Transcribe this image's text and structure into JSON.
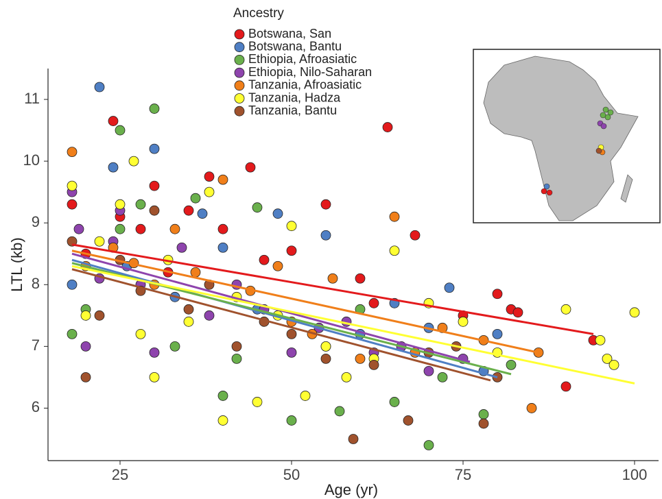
{
  "chart_data": {
    "type": "scatter",
    "xlabel": "Age (yr)",
    "ylabel": "LTL (kb)",
    "legend_title": "Ancestry",
    "xlim": [
      14.5,
      103.5
    ],
    "ylim": [
      5.15,
      11.5
    ],
    "xticks": [
      25,
      50,
      75,
      100
    ],
    "yticks": [
      6,
      7,
      8,
      9,
      10,
      11
    ],
    "series": [
      {
        "name": "Botswana, San",
        "color": "#e31a1c",
        "x": [
          18,
          20,
          24,
          25,
          28,
          30,
          32,
          35,
          38,
          40,
          44,
          46,
          50,
          55,
          60,
          62,
          64,
          68,
          75,
          80,
          82,
          83,
          90,
          94
        ],
        "y": [
          9.3,
          8.5,
          10.65,
          9.1,
          8.9,
          9.6,
          8.2,
          9.2,
          9.75,
          8.9,
          9.9,
          8.4,
          8.55,
          9.3,
          8.1,
          7.7,
          10.55,
          8.8,
          7.5,
          7.85,
          7.6,
          7.55,
          6.35,
          7.1
        ],
        "fit": {
          "x": [
            18,
            94
          ],
          "y": [
            8.65,
            7.2
          ]
        }
      },
      {
        "name": "Botswana, Bantu",
        "color": "#4f7fc4",
        "x": [
          18,
          22,
          24,
          26,
          30,
          33,
          37,
          40,
          45,
          48,
          55,
          60,
          65,
          70,
          73,
          78,
          80
        ],
        "y": [
          8.0,
          11.2,
          9.9,
          8.3,
          10.2,
          7.8,
          9.15,
          8.6,
          7.6,
          9.15,
          8.8,
          7.2,
          7.7,
          7.3,
          7.95,
          6.6,
          7.2
        ],
        "fit": {
          "x": [
            18,
            80
          ],
          "y": [
            8.4,
            6.5
          ]
        }
      },
      {
        "name": "Ethiopia, Afroasiatic",
        "color": "#6ab04c",
        "x": [
          18,
          20,
          25,
          25,
          28,
          30,
          33,
          36,
          40,
          42,
          45,
          50,
          55,
          57,
          60,
          65,
          70,
          72,
          78,
          82
        ],
        "y": [
          7.2,
          7.6,
          10.5,
          8.9,
          9.3,
          10.85,
          7.0,
          9.4,
          6.2,
          6.8,
          9.25,
          5.8,
          7.0,
          5.95,
          7.6,
          6.1,
          5.4,
          6.5,
          5.9,
          6.7
        ],
        "fit": {
          "x": [
            18,
            82
          ],
          "y": [
            8.35,
            6.55
          ]
        }
      },
      {
        "name": "Ethiopia, Nilo-Saharan",
        "color": "#8e44ad",
        "x": [
          18,
          19,
          20,
          22,
          24,
          25,
          28,
          30,
          34,
          38,
          42,
          46,
          50,
          54,
          58,
          62,
          66,
          70,
          75
        ],
        "y": [
          9.5,
          8.9,
          7.0,
          8.1,
          8.7,
          9.2,
          8.0,
          6.9,
          8.6,
          7.5,
          8.0,
          7.6,
          6.9,
          7.3,
          7.4,
          6.9,
          7.0,
          6.6,
          6.8
        ],
        "fit": {
          "x": [
            18,
            76
          ],
          "y": [
            8.5,
            6.75
          ]
        }
      },
      {
        "name": "Tanzania, Afroasiatic",
        "color": "#f07f1a",
        "x": [
          18,
          20,
          24,
          27,
          30,
          33,
          36,
          40,
          44,
          48,
          50,
          53,
          56,
          60,
          65,
          68,
          72,
          78,
          85,
          86
        ],
        "y": [
          10.15,
          8.3,
          8.6,
          8.35,
          8.0,
          8.9,
          8.2,
          9.7,
          7.9,
          8.3,
          7.4,
          7.2,
          8.1,
          6.8,
          9.1,
          6.9,
          7.3,
          7.1,
          6.0,
          6.9
        ],
        "fit": {
          "x": [
            18,
            86
          ],
          "y": [
            8.55,
            6.9
          ]
        }
      },
      {
        "name": "Tanzania, Hadza",
        "color": "#ffff33",
        "x": [
          18,
          20,
          22,
          25,
          27,
          28,
          30,
          32,
          35,
          38,
          40,
          42,
          45,
          48,
          50,
          52,
          55,
          58,
          62,
          65,
          70,
          75,
          80,
          90,
          95,
          96,
          97,
          100
        ],
        "y": [
          9.6,
          7.5,
          8.7,
          9.3,
          10.0,
          7.2,
          6.5,
          8.4,
          7.4,
          9.5,
          5.8,
          7.8,
          6.1,
          7.5,
          8.95,
          6.2,
          7.0,
          6.5,
          6.8,
          8.55,
          7.7,
          7.4,
          6.9,
          7.6,
          7.1,
          6.8,
          6.7,
          7.55
        ],
        "fit": {
          "x": [
            18,
            100
          ],
          "y": [
            8.3,
            6.4
          ]
        }
      },
      {
        "name": "Tanzania, Bantu",
        "color": "#a0522d",
        "x": [
          18,
          20,
          22,
          25,
          28,
          30,
          35,
          38,
          42,
          46,
          50,
          55,
          59,
          62,
          67,
          70,
          74,
          78,
          80
        ],
        "y": [
          8.7,
          6.5,
          7.5,
          8.4,
          7.9,
          9.2,
          7.6,
          8.0,
          7.0,
          7.4,
          7.2,
          6.8,
          5.5,
          6.7,
          5.8,
          6.9,
          7.0,
          5.75,
          6.5
        ],
        "fit": {
          "x": [
            18,
            79
          ],
          "y": [
            8.25,
            6.45
          ]
        }
      }
    ]
  }
}
